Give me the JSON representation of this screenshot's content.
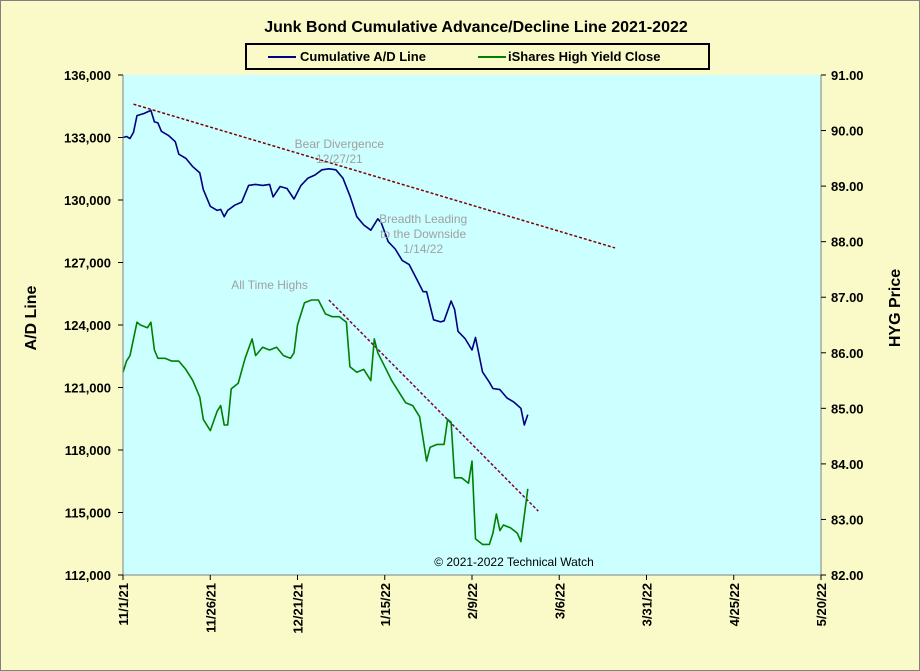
{
  "chart_data": {
    "type": "line",
    "title": "Junk Bond Cumulative Advance/Decline Line 2021-2022",
    "ylabel": "A/D Line",
    "y2label": "HYG Price",
    "xlabel": "",
    "ylim": [
      112000,
      136000
    ],
    "y2lim": [
      82.0,
      91.0
    ],
    "x_range": [
      "2021-11-01",
      "2022-05-20"
    ],
    "y_ticks": [
      "112,000",
      "115,000",
      "118,000",
      "121,000",
      "124,000",
      "127,000",
      "130,000",
      "133,000",
      "136,000"
    ],
    "y2_ticks": [
      "82.00",
      "83.00",
      "84.00",
      "85.00",
      "86.00",
      "87.00",
      "88.00",
      "89.00",
      "90.00",
      "91.00"
    ],
    "x_ticks": [
      "11/1/21",
      "11/26/21",
      "12/21/21",
      "1/15/22",
      "2/9/22",
      "3/6/22",
      "3/31/22",
      "4/25/22",
      "5/20/22"
    ],
    "grid": false,
    "plot_background": "#ccffff",
    "page_background": "#fafac8",
    "legend_position": "top-center",
    "copyright": "© 2021-2022 Technical Watch",
    "series": [
      {
        "name": "Cumulative A/D Line",
        "axis": "left",
        "color": "#000080",
        "points": [
          [
            "2021-11-01",
            133000
          ],
          [
            "2021-11-02",
            133050
          ],
          [
            "2021-11-03",
            132950
          ],
          [
            "2021-11-04",
            133250
          ],
          [
            "2021-11-05",
            134050
          ],
          [
            "2021-11-07",
            134150
          ],
          [
            "2021-11-09",
            134300
          ],
          [
            "2021-11-10",
            133750
          ],
          [
            "2021-11-11",
            133700
          ],
          [
            "2021-11-12",
            133300
          ],
          [
            "2021-11-14",
            133100
          ],
          [
            "2021-11-16",
            132800
          ],
          [
            "2021-11-17",
            132200
          ],
          [
            "2021-11-19",
            132000
          ],
          [
            "2021-11-21",
            131600
          ],
          [
            "2021-11-23",
            131300
          ],
          [
            "2021-11-24",
            130500
          ],
          [
            "2021-11-26",
            129700
          ],
          [
            "2021-11-28",
            129500
          ],
          [
            "2021-11-29",
            129550
          ],
          [
            "2021-11-30",
            129200
          ],
          [
            "2021-12-01",
            129500
          ],
          [
            "2021-12-03",
            129750
          ],
          [
            "2021-12-05",
            129900
          ],
          [
            "2021-12-07",
            130700
          ],
          [
            "2021-12-09",
            130750
          ],
          [
            "2021-12-11",
            130700
          ],
          [
            "2021-12-13",
            130750
          ],
          [
            "2021-12-14",
            130150
          ],
          [
            "2021-12-16",
            130650
          ],
          [
            "2021-12-18",
            130550
          ],
          [
            "2021-12-20",
            130050
          ],
          [
            "2021-12-22",
            130700
          ],
          [
            "2021-12-24",
            131050
          ],
          [
            "2021-12-26",
            131200
          ],
          [
            "2021-12-28",
            131450
          ],
          [
            "2021-12-30",
            131500
          ],
          [
            "2022-01-01",
            131450
          ],
          [
            "2022-01-03",
            131050
          ],
          [
            "2022-01-05",
            130200
          ],
          [
            "2022-01-07",
            129200
          ],
          [
            "2022-01-09",
            128800
          ],
          [
            "2022-01-11",
            128550
          ],
          [
            "2022-01-13",
            129100
          ],
          [
            "2022-01-14",
            128900
          ],
          [
            "2022-01-16",
            128000
          ],
          [
            "2022-01-18",
            127650
          ],
          [
            "2022-01-20",
            127100
          ],
          [
            "2022-01-22",
            126900
          ],
          [
            "2022-01-24",
            126250
          ],
          [
            "2022-01-26",
            125600
          ],
          [
            "2022-01-27",
            125600
          ],
          [
            "2022-01-29",
            124250
          ],
          [
            "2022-01-31",
            124150
          ],
          [
            "2022-02-01",
            124200
          ],
          [
            "2022-02-03",
            125150
          ],
          [
            "2022-02-04",
            124750
          ],
          [
            "2022-02-05",
            123700
          ],
          [
            "2022-02-07",
            123350
          ],
          [
            "2022-02-09",
            122800
          ],
          [
            "2022-02-10",
            123400
          ],
          [
            "2022-02-12",
            121750
          ],
          [
            "2022-02-14",
            121250
          ],
          [
            "2022-02-15",
            120950
          ],
          [
            "2022-02-17",
            120900
          ],
          [
            "2022-02-19",
            120500
          ],
          [
            "2022-02-21",
            120300
          ],
          [
            "2022-02-23",
            120000
          ],
          [
            "2022-02-24",
            119200
          ],
          [
            "2022-02-25",
            119700
          ]
        ]
      },
      {
        "name": "iShares High Yield Close",
        "axis": "right",
        "color": "#008000",
        "points": [
          [
            "2021-11-01",
            85.65
          ],
          [
            "2021-11-02",
            85.85
          ],
          [
            "2021-11-03",
            85.95
          ],
          [
            "2021-11-05",
            86.55
          ],
          [
            "2021-11-06",
            86.5
          ],
          [
            "2021-11-08",
            86.45
          ],
          [
            "2021-11-09",
            86.55
          ],
          [
            "2021-11-10",
            86.05
          ],
          [
            "2021-11-11",
            85.9
          ],
          [
            "2021-11-13",
            85.9
          ],
          [
            "2021-11-15",
            85.85
          ],
          [
            "2021-11-17",
            85.85
          ],
          [
            "2021-11-19",
            85.7
          ],
          [
            "2021-11-21",
            85.5
          ],
          [
            "2021-11-23",
            85.2
          ],
          [
            "2021-11-24",
            84.8
          ],
          [
            "2021-11-26",
            84.6
          ],
          [
            "2021-11-28",
            84.95
          ],
          [
            "2021-11-29",
            85.05
          ],
          [
            "2021-11-30",
            84.7
          ],
          [
            "2021-12-01",
            84.7
          ],
          [
            "2021-12-02",
            85.35
          ],
          [
            "2021-12-04",
            85.45
          ],
          [
            "2021-12-06",
            85.9
          ],
          [
            "2021-12-08",
            86.25
          ],
          [
            "2021-12-09",
            85.95
          ],
          [
            "2021-12-11",
            86.1
          ],
          [
            "2021-12-13",
            86.05
          ],
          [
            "2021-12-15",
            86.1
          ],
          [
            "2021-12-17",
            85.95
          ],
          [
            "2021-12-19",
            85.9
          ],
          [
            "2021-12-20",
            86.0
          ],
          [
            "2021-12-21",
            86.5
          ],
          [
            "2021-12-23",
            86.9
          ],
          [
            "2021-12-25",
            86.95
          ],
          [
            "2021-12-27",
            86.95
          ],
          [
            "2021-12-29",
            86.7
          ],
          [
            "2021-12-31",
            86.65
          ],
          [
            "2022-01-02",
            86.65
          ],
          [
            "2022-01-04",
            86.55
          ],
          [
            "2022-01-05",
            85.75
          ],
          [
            "2022-01-07",
            85.65
          ],
          [
            "2022-01-09",
            85.7
          ],
          [
            "2022-01-11",
            85.5
          ],
          [
            "2022-01-12",
            86.25
          ],
          [
            "2022-01-13",
            86.0
          ],
          [
            "2022-01-15",
            85.75
          ],
          [
            "2022-01-17",
            85.5
          ],
          [
            "2022-01-19",
            85.3
          ],
          [
            "2022-01-21",
            85.1
          ],
          [
            "2022-01-23",
            85.05
          ],
          [
            "2022-01-25",
            84.85
          ],
          [
            "2022-01-27",
            84.05
          ],
          [
            "2022-01-28",
            84.3
          ],
          [
            "2022-01-30",
            84.35
          ],
          [
            "2022-02-01",
            84.35
          ],
          [
            "2022-02-02",
            84.8
          ],
          [
            "2022-02-03",
            84.75
          ],
          [
            "2022-02-04",
            83.75
          ],
          [
            "2022-02-06",
            83.75
          ],
          [
            "2022-02-08",
            83.65
          ],
          [
            "2022-02-09",
            84.05
          ],
          [
            "2022-02-10",
            82.65
          ],
          [
            "2022-02-12",
            82.55
          ],
          [
            "2022-02-14",
            82.55
          ],
          [
            "2022-02-15",
            82.75
          ],
          [
            "2022-02-16",
            83.1
          ],
          [
            "2022-02-17",
            82.8
          ],
          [
            "2022-02-18",
            82.9
          ],
          [
            "2022-02-20",
            82.85
          ],
          [
            "2022-02-22",
            82.75
          ],
          [
            "2022-02-23",
            82.6
          ],
          [
            "2022-02-25",
            83.55
          ]
        ]
      }
    ],
    "trendlines": [
      {
        "axis": "left",
        "color": "#800000",
        "from": [
          "2021-11-04",
          134600
        ],
        "to": [
          "2022-03-22",
          127700
        ]
      },
      {
        "axis": "right",
        "color": "#800040",
        "from": [
          "2021-12-30",
          86.95
        ],
        "to": [
          "2022-02-28",
          83.15
        ]
      }
    ],
    "annotations": [
      {
        "lines": [
          "Bear Divergence",
          "12/27/21"
        ],
        "x": "2022-01-02",
        "y": 132500,
        "axis": "left",
        "align": "middle"
      },
      {
        "lines": [
          "Breadth Leading",
          "to the Downside",
          "1/14/22"
        ],
        "x": "2022-01-26",
        "y": 128900,
        "axis": "left",
        "align": "middle"
      },
      {
        "lines": [
          "All Time Highs"
        ],
        "x": "2021-12-13",
        "y": 87.15,
        "axis": "right",
        "align": "middle"
      }
    ]
  }
}
